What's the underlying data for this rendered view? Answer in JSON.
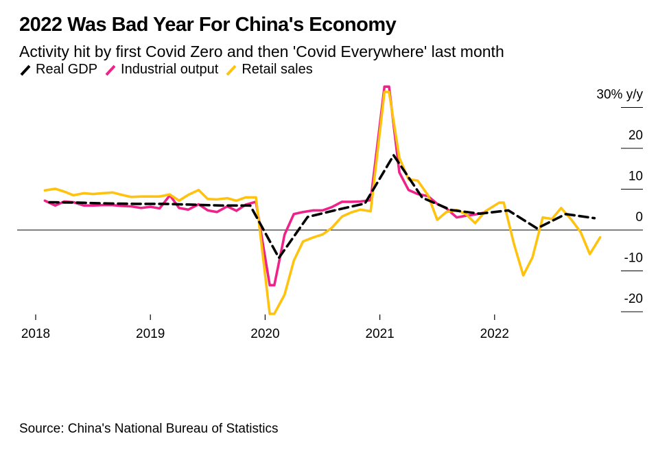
{
  "chart_data": {
    "type": "line",
    "title": "2022 Was Bad Year For China's Economy",
    "subtitle": "Activity hit by first Covid Zero and then 'Covid Everywhere' last month",
    "source": "Source: China's National Bureau of Statistics",
    "y_unit_label": "30% y/y",
    "y_ticks": [
      {
        "value": 30,
        "label": "30% y/y"
      },
      {
        "value": 20,
        "label": "20"
      },
      {
        "value": 10,
        "label": "10"
      },
      {
        "value": 0,
        "label": "0"
      },
      {
        "value": -10,
        "label": "-10"
      },
      {
        "value": -20,
        "label": "-20"
      }
    ],
    "ylim": [
      -21,
      35
    ],
    "xlim": [
      2018.0,
      2023.0
    ],
    "x_ticks": [
      {
        "value": 2018.0,
        "label": "2018"
      },
      {
        "value": 2019.0,
        "label": "2019"
      },
      {
        "value": 2020.0,
        "label": "2020"
      },
      {
        "value": 2021.0,
        "label": "2021"
      },
      {
        "value": 2022.0,
        "label": "2022"
      }
    ],
    "legend": [
      {
        "name": "Real GDP",
        "color": "#000000"
      },
      {
        "name": "Industrial output",
        "color": "#ee2288"
      },
      {
        "name": "Retail sales",
        "color": "#ffc20e"
      }
    ],
    "series": [
      {
        "name": "Real GDP",
        "color": "#000000",
        "dashed": true,
        "points": [
          [
            2018.12,
            6.8
          ],
          [
            2018.37,
            6.7
          ],
          [
            2018.62,
            6.5
          ],
          [
            2018.87,
            6.4
          ],
          [
            2019.12,
            6.4
          ],
          [
            2019.37,
            6.2
          ],
          [
            2019.62,
            6.0
          ],
          [
            2019.87,
            6.0
          ],
          [
            2020.12,
            -6.8
          ],
          [
            2020.37,
            3.2
          ],
          [
            2020.62,
            4.9
          ],
          [
            2020.87,
            6.5
          ],
          [
            2021.12,
            18.3
          ],
          [
            2021.37,
            7.9
          ],
          [
            2021.62,
            4.9
          ],
          [
            2021.87,
            4.0
          ],
          [
            2022.12,
            4.8
          ],
          [
            2022.37,
            0.4
          ],
          [
            2022.62,
            3.9
          ],
          [
            2022.87,
            2.9
          ]
        ]
      },
      {
        "name": "Industrial output",
        "color": "#ee2288",
        "dashed": false,
        "points": [
          [
            2018.08,
            7.2
          ],
          [
            2018.17,
            6.0
          ],
          [
            2018.25,
            7.0
          ],
          [
            2018.33,
            6.8
          ],
          [
            2018.42,
            6.0
          ],
          [
            2018.5,
            6.0
          ],
          [
            2018.58,
            6.1
          ],
          [
            2018.67,
            6.1
          ],
          [
            2018.75,
            5.9
          ],
          [
            2018.83,
            5.8
          ],
          [
            2018.92,
            5.4
          ],
          [
            2019.0,
            5.7
          ],
          [
            2019.08,
            5.3
          ],
          [
            2019.17,
            8.5
          ],
          [
            2019.25,
            5.4
          ],
          [
            2019.33,
            5.0
          ],
          [
            2019.42,
            6.3
          ],
          [
            2019.5,
            4.8
          ],
          [
            2019.58,
            4.4
          ],
          [
            2019.67,
            5.8
          ],
          [
            2019.75,
            4.7
          ],
          [
            2019.83,
            6.2
          ],
          [
            2019.92,
            6.9
          ],
          [
            2020.04,
            -13.5
          ],
          [
            2020.08,
            -13.5
          ],
          [
            2020.17,
            -1.1
          ],
          [
            2020.25,
            3.9
          ],
          [
            2020.33,
            4.4
          ],
          [
            2020.42,
            4.8
          ],
          [
            2020.5,
            4.8
          ],
          [
            2020.58,
            5.6
          ],
          [
            2020.67,
            6.9
          ],
          [
            2020.75,
            6.9
          ],
          [
            2020.83,
            7.0
          ],
          [
            2020.92,
            7.3
          ],
          [
            2021.04,
            35.1
          ],
          [
            2021.08,
            35.1
          ],
          [
            2021.17,
            14.1
          ],
          [
            2021.25,
            9.8
          ],
          [
            2021.33,
            8.8
          ],
          [
            2021.42,
            8.3
          ],
          [
            2021.5,
            6.4
          ],
          [
            2021.58,
            5.3
          ],
          [
            2021.67,
            3.1
          ],
          [
            2021.75,
            3.5
          ],
          [
            2021.83,
            3.8
          ],
          [
            2021.92,
            4.3
          ]
        ]
      },
      {
        "name": "Retail sales",
        "color": "#ffc20e",
        "dashed": false,
        "points": [
          [
            2018.08,
            9.7
          ],
          [
            2018.17,
            10.1
          ],
          [
            2018.25,
            9.4
          ],
          [
            2018.33,
            8.5
          ],
          [
            2018.42,
            9.0
          ],
          [
            2018.5,
            8.8
          ],
          [
            2018.58,
            9.0
          ],
          [
            2018.67,
            9.2
          ],
          [
            2018.75,
            8.6
          ],
          [
            2018.83,
            8.1
          ],
          [
            2018.92,
            8.2
          ],
          [
            2019.0,
            8.2
          ],
          [
            2019.08,
            8.2
          ],
          [
            2019.17,
            8.7
          ],
          [
            2019.25,
            7.2
          ],
          [
            2019.33,
            8.6
          ],
          [
            2019.42,
            9.8
          ],
          [
            2019.5,
            7.6
          ],
          [
            2019.58,
            7.5
          ],
          [
            2019.67,
            7.8
          ],
          [
            2019.75,
            7.2
          ],
          [
            2019.83,
            8.0
          ],
          [
            2019.92,
            8.0
          ],
          [
            2020.04,
            -20.5
          ],
          [
            2020.08,
            -20.5
          ],
          [
            2020.17,
            -15.8
          ],
          [
            2020.25,
            -7.5
          ],
          [
            2020.33,
            -2.8
          ],
          [
            2020.42,
            -1.8
          ],
          [
            2020.5,
            -1.1
          ],
          [
            2020.58,
            0.5
          ],
          [
            2020.67,
            3.3
          ],
          [
            2020.75,
            4.3
          ],
          [
            2020.83,
            5.0
          ],
          [
            2020.92,
            4.6
          ],
          [
            2021.04,
            33.8
          ],
          [
            2021.08,
            33.8
          ],
          [
            2021.17,
            17.7
          ],
          [
            2021.25,
            12.4
          ],
          [
            2021.33,
            12.1
          ],
          [
            2021.42,
            8.5
          ],
          [
            2021.5,
            2.5
          ],
          [
            2021.58,
            4.4
          ],
          [
            2021.67,
            4.9
          ],
          [
            2021.75,
            3.9
          ],
          [
            2021.83,
            1.7
          ],
          [
            2021.92,
            4.6
          ],
          [
            2022.04,
            6.7
          ],
          [
            2022.08,
            6.7
          ],
          [
            2022.17,
            -3.5
          ],
          [
            2022.25,
            -11.1
          ],
          [
            2022.33,
            -6.7
          ],
          [
            2022.42,
            3.1
          ],
          [
            2022.5,
            2.7
          ],
          [
            2022.58,
            5.4
          ],
          [
            2022.67,
            2.5
          ],
          [
            2022.75,
            -0.5
          ],
          [
            2022.83,
            -5.9
          ],
          [
            2022.92,
            -1.8
          ]
        ]
      }
    ]
  }
}
